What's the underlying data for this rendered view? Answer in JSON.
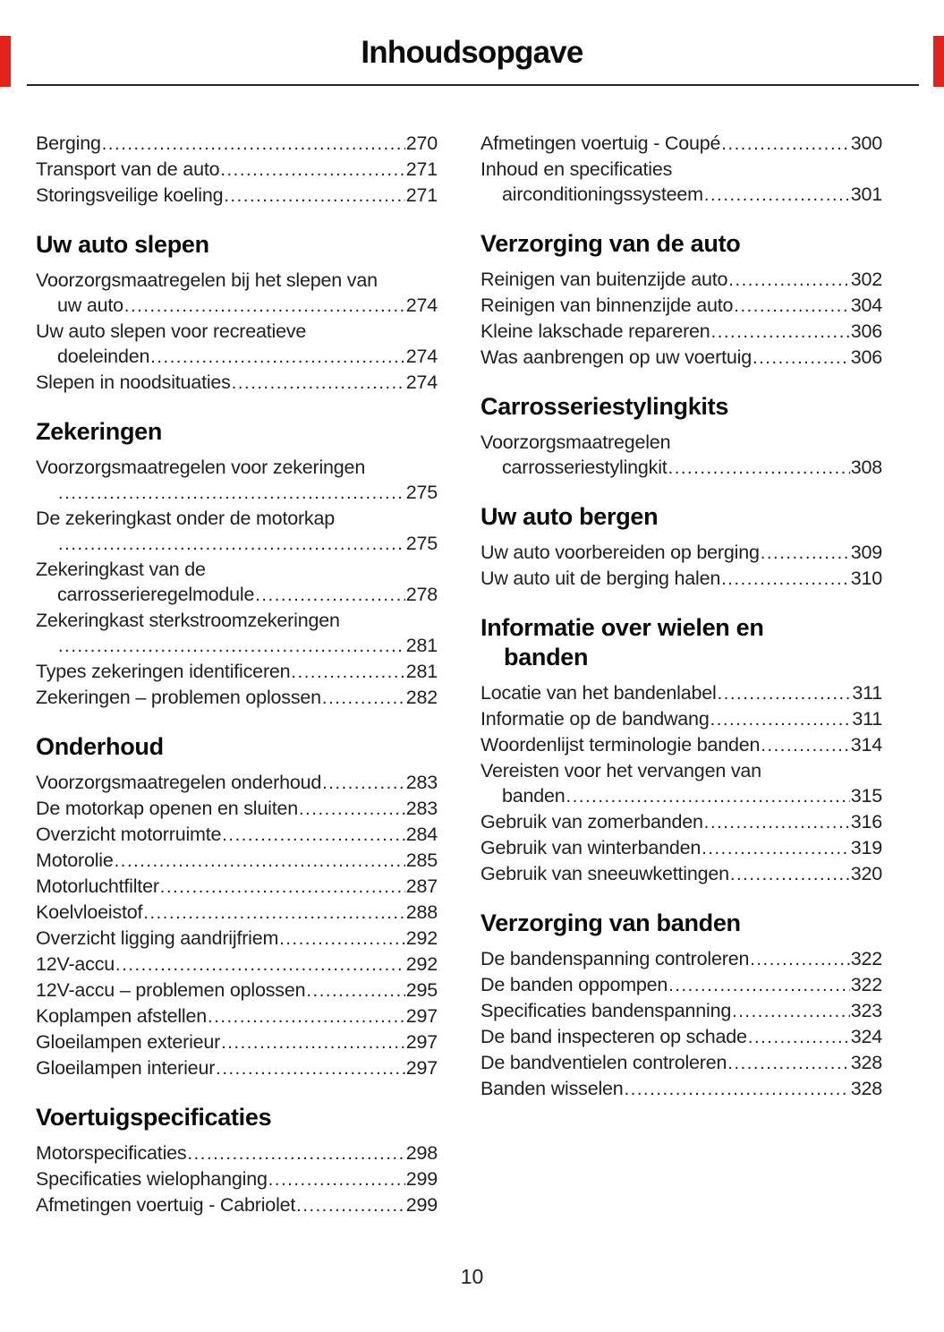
{
  "page": {
    "title": "Inhoudsopgave",
    "page_number": "10",
    "accent_color": "#e2231a",
    "text_color": "#1f1f1f"
  },
  "toc": {
    "columns": [
      {
        "blocks": [
          {
            "entries": [
              {
                "label": "Berging",
                "page": "270"
              },
              {
                "label": "Transport van de auto",
                "page": "271"
              },
              {
                "label": "Storingsveilige koeling",
                "page": "271"
              }
            ]
          },
          {
            "heading": "Uw auto slepen",
            "entries": [
              {
                "label": "Voorzorgsmaatregelen bij het slepen van",
                "label2": "uw auto",
                "page": "274"
              },
              {
                "label": "Uw auto slepen voor recreatieve",
                "label2": "doeleinden",
                "page": "274"
              },
              {
                "label": "Slepen in noodsituaties",
                "page": "274"
              }
            ]
          },
          {
            "heading": "Zekeringen",
            "entries": [
              {
                "label": "Voorzorgsmaatregelen voor zekeringen",
                "label2": "",
                "page": "275"
              },
              {
                "label": "De zekeringkast onder de motorkap",
                "label2": "",
                "page": "275"
              },
              {
                "label": "Zekeringkast van de",
                "label2": "carrosserieregelmodule",
                "page": "278"
              },
              {
                "label": "Zekeringkast sterkstroomzekeringen",
                "label2": "",
                "page": "281"
              },
              {
                "label": "Types zekeringen identificeren",
                "page": "281"
              },
              {
                "label": "Zekeringen – problemen oplossen",
                "page": "282"
              }
            ]
          },
          {
            "heading": "Onderhoud",
            "entries": [
              {
                "label": "Voorzorgsmaatregelen onderhoud",
                "page": "283"
              },
              {
                "label": "De motorkap openen en sluiten",
                "page": "283"
              },
              {
                "label": "Overzicht motorruimte",
                "page": "284"
              },
              {
                "label": "Motorolie",
                "page": "285"
              },
              {
                "label": "Motorluchtfilter",
                "page": "287"
              },
              {
                "label": "Koelvloeistof",
                "page": "288"
              },
              {
                "label": "Overzicht ligging aandrijfriem",
                "page": "292"
              },
              {
                "label": "12V-accu",
                "page": "292"
              },
              {
                "label": "12V-accu – problemen oplossen",
                "page": "295"
              },
              {
                "label": "Koplampen afstellen",
                "page": "297"
              },
              {
                "label": "Gloeilampen exterieur",
                "page": "297"
              },
              {
                "label": "Gloeilampen interieur",
                "page": "297"
              }
            ]
          },
          {
            "heading": "Voertuigspecificaties",
            "entries": [
              {
                "label": "Motorspecificaties",
                "page": "298"
              },
              {
                "label": "Specificaties wielophanging",
                "page": "299"
              },
              {
                "label": "Afmetingen voertuig - Cabriolet",
                "page": "299"
              }
            ]
          }
        ]
      },
      {
        "blocks": [
          {
            "entries": [
              {
                "label": "Afmetingen voertuig - Coupé",
                "page": "300"
              },
              {
                "label": "Inhoud en specificaties",
                "label2": "airconditioningssysteem",
                "page": "301"
              }
            ]
          },
          {
            "heading": "Verzorging van de auto",
            "entries": [
              {
                "label": "Reinigen van buitenzijde auto",
                "page": "302"
              },
              {
                "label": "Reinigen van binnenzijde auto",
                "page": "304"
              },
              {
                "label": "Kleine lakschade repareren",
                "page": "306"
              },
              {
                "label": "Was aanbrengen op uw voertuig",
                "page": "306"
              }
            ]
          },
          {
            "heading": "Carrosseriestylingkits",
            "entries": [
              {
                "label": "Voorzorgsmaatregelen",
                "label2": "carrosseriestylingkit",
                "page": "308"
              }
            ]
          },
          {
            "heading": "Uw auto bergen",
            "entries": [
              {
                "label": "Uw auto voorbereiden op berging",
                "page": "309"
              },
              {
                "label": "Uw auto uit de berging halen",
                "page": "310"
              }
            ]
          },
          {
            "heading": "Informatie over wielen en",
            "heading2": "banden",
            "entries": [
              {
                "label": "Locatie van het bandenlabel",
                "page": "311"
              },
              {
                "label": "Informatie op de bandwang",
                "page": "311"
              },
              {
                "label": "Woordenlijst terminologie banden",
                "page": "314"
              },
              {
                "label": "Vereisten voor het vervangen van",
                "label2": "banden",
                "page": "315"
              },
              {
                "label": "Gebruik van zomerbanden",
                "page": "316"
              },
              {
                "label": "Gebruik van winterbanden",
                "page": "319"
              },
              {
                "label": "Gebruik van sneeuwkettingen",
                "page": "320"
              }
            ]
          },
          {
            "heading": "Verzorging van banden",
            "entries": [
              {
                "label": "De bandenspanning controleren",
                "page": "322"
              },
              {
                "label": "De banden oppompen",
                "page": "322"
              },
              {
                "label": "Specificaties bandenspanning",
                "page": "323"
              },
              {
                "label": "De band inspecteren op schade",
                "page": "324"
              },
              {
                "label": "De bandventielen controleren",
                "page": "328"
              },
              {
                "label": "Banden wisselen",
                "page": "328"
              }
            ]
          }
        ]
      }
    ]
  }
}
